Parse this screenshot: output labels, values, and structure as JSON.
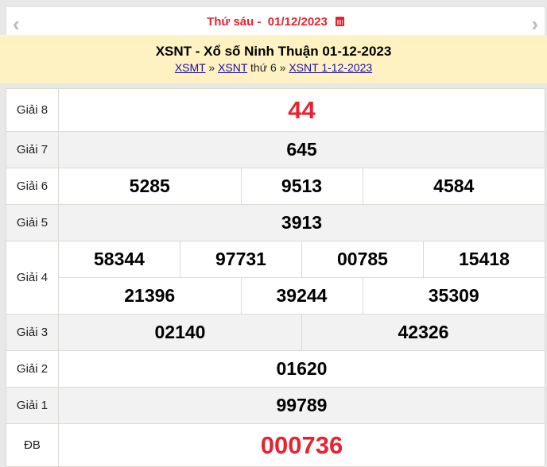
{
  "nav": {
    "date_label": "Thứ sáu -  01/12/2023",
    "prev_icon": "chevron-left-icon",
    "next_icon": "chevron-right-icon",
    "calendar_icon": "calendar-icon"
  },
  "header": {
    "title": "XSNT - Xổ số Ninh Thuận 01-12-2023",
    "breadcrumb": {
      "link1": "XSMT",
      "sep1": " » ",
      "link2": "XSNT",
      "text": " thứ 6 » ",
      "link3": "XSNT 1-12-2023"
    }
  },
  "results": {
    "g8": {
      "label": "Giải 8",
      "values": [
        "44"
      ]
    },
    "g7": {
      "label": "Giải 7",
      "values": [
        "645"
      ]
    },
    "g6": {
      "label": "Giải 6",
      "values": [
        "5285",
        "9513",
        "4584"
      ]
    },
    "g5": {
      "label": "Giải 5",
      "values": [
        "3913"
      ]
    },
    "g4": {
      "label": "Giải 4",
      "values": [
        "58344",
        "97731",
        "00785",
        "15418",
        "21396",
        "39244",
        "35309"
      ]
    },
    "g3": {
      "label": "Giải 3",
      "values": [
        "02140",
        "42326"
      ]
    },
    "g2": {
      "label": "Giải 2",
      "values": [
        "01620"
      ]
    },
    "g1": {
      "label": "Giải 1",
      "values": [
        "99789"
      ]
    },
    "db": {
      "label": "ĐB",
      "values": [
        "000736"
      ]
    }
  },
  "colors": {
    "accent": "#e8222e",
    "header_bg": "#fff2c2",
    "alt_row": "#f2f2f2"
  }
}
